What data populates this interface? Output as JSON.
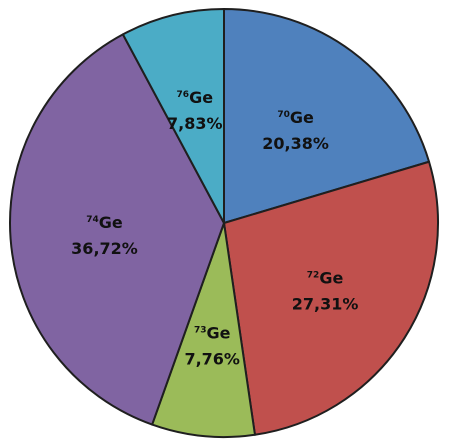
{
  "chart_data": {
    "type": "pie",
    "start": "12 o'clock",
    "direction": "clockwise",
    "legend": "none",
    "slices": [
      {
        "mass": "70",
        "symbol": "Ge",
        "label": "20,38%",
        "value": 20.38,
        "color": "#4f81bd"
      },
      {
        "mass": "72",
        "symbol": "Ge",
        "label": "27,31%",
        "value": 27.31,
        "color": "#c0504d"
      },
      {
        "mass": "73",
        "symbol": "Ge",
        "label": "7,76%",
        "value": 7.76,
        "color": "#9bbb59"
      },
      {
        "mass": "74",
        "symbol": "Ge",
        "label": "36,72%",
        "value": 36.72,
        "color": "#8064a2"
      },
      {
        "mass": "76",
        "symbol": "Ge",
        "label": "7,83%",
        "value": 7.83,
        "color": "#4bacc6"
      }
    ]
  }
}
